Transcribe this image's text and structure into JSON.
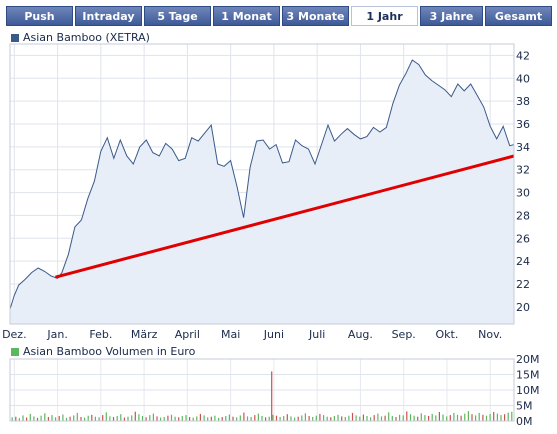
{
  "tabs": [
    {
      "label": "Push",
      "active": false
    },
    {
      "label": "Intraday",
      "active": false
    },
    {
      "label": "5 Tage",
      "active": false
    },
    {
      "label": "1 Monat",
      "active": false
    },
    {
      "label": "3 Monate",
      "active": false
    },
    {
      "label": "1 Jahr",
      "active": true
    },
    {
      "label": "3 Jahre",
      "active": false
    },
    {
      "label": "Gesamt",
      "active": false
    }
  ],
  "colors": {
    "price_line": "#3b5a8a",
    "price_fill": "#e8eef8",
    "trend_line": "#e00000",
    "volume_up": "#5cb85c",
    "volume_down": "#d05050",
    "legend_price": "#3b5a8a",
    "legend_volume": "#5cb85c"
  },
  "chart_data": [
    {
      "type": "line",
      "legend": "Asian Bamboo (XETRA)",
      "categories": [
        "Dez.",
        "Jan.",
        "Feb.",
        "März",
        "April",
        "Mai",
        "Juni",
        "Juli",
        "Aug.",
        "Sep.",
        "Okt.",
        "Nov."
      ],
      "y_ticks": [
        20,
        22,
        24,
        26,
        28,
        30,
        32,
        34,
        36,
        38,
        40,
        42
      ],
      "ylim": [
        18.5,
        43
      ],
      "grid": true,
      "x_range_months": [
        -0.1,
        11.55
      ],
      "series": [
        {
          "x": [
            -0.1,
            0.0,
            0.1,
            0.25,
            0.4,
            0.55,
            0.7,
            0.85,
            1.0,
            1.1,
            1.25,
            1.4,
            1.55,
            1.7,
            1.85,
            2.0,
            2.15,
            2.3,
            2.45,
            2.6,
            2.75,
            2.9,
            3.05,
            3.2,
            3.35,
            3.5,
            3.65,
            3.8,
            3.95,
            4.1,
            4.25,
            4.4,
            4.55,
            4.7,
            4.85,
            5.0,
            5.15,
            5.3,
            5.45,
            5.6,
            5.75,
            5.9,
            6.05,
            6.2,
            6.35,
            6.5,
            6.65,
            6.8,
            6.95,
            7.1,
            7.25,
            7.4,
            7.55,
            7.7,
            7.85,
            8.0,
            8.15,
            8.3,
            8.45,
            8.6,
            8.75,
            8.9,
            9.05,
            9.2,
            9.35,
            9.5,
            9.65,
            9.8,
            9.95,
            10.1,
            10.25,
            10.4,
            10.55,
            10.7,
            10.85,
            11.0,
            11.15,
            11.3,
            11.45,
            11.55
          ],
          "y": [
            19.8,
            21.0,
            21.9,
            22.4,
            23.0,
            23.4,
            23.1,
            22.7,
            22.5,
            23.0,
            24.6,
            27.0,
            27.6,
            29.5,
            31.0,
            33.6,
            34.8,
            33.0,
            34.6,
            33.2,
            32.5,
            34.0,
            34.6,
            33.5,
            33.2,
            34.3,
            33.8,
            32.8,
            33.0,
            34.8,
            34.5,
            35.2,
            35.9,
            32.5,
            32.3,
            32.8,
            30.5,
            27.8,
            32.2,
            34.5,
            34.6,
            33.8,
            34.2,
            32.6,
            32.7,
            34.6,
            34.1,
            33.8,
            32.5,
            34.2,
            35.9,
            34.5,
            35.1,
            35.6,
            35.1,
            34.7,
            34.9,
            35.7,
            35.3,
            35.7,
            37.8,
            39.4,
            40.4,
            41.6,
            41.2,
            40.3,
            39.8,
            39.4,
            39.0,
            38.4,
            39.5,
            38.9,
            39.5,
            38.5,
            37.5,
            35.8,
            34.7,
            35.8,
            34.1,
            34.2
          ]
        }
      ],
      "trend_line": {
        "x": [
          0.95,
          11.55
        ],
        "y": [
          22.6,
          33.2
        ]
      }
    },
    {
      "type": "bar",
      "legend": "Asian Bamboo Volumen in Euro",
      "y_tick_labels": [
        "0M",
        "5M",
        "10M",
        "15M",
        "20M"
      ],
      "y_tick_values": [
        0,
        5,
        10,
        15,
        20
      ],
      "ylim": [
        0,
        20
      ],
      "unit": "M",
      "approx_baseline_volume": 1.5,
      "spike": {
        "x": 5.95,
        "value": 16.0
      },
      "volumes": [
        1.2,
        1.4,
        0.9,
        1.8,
        1.1,
        2.3,
        1.5,
        1.0,
        1.7,
        2.5,
        1.3,
        1.9,
        1.2,
        1.6,
        2.1,
        1.0,
        1.4,
        1.8,
        2.6,
        1.3,
        1.1,
        1.7,
        2.0,
        1.4,
        1.2,
        1.9,
        2.8,
        1.5,
        1.3,
        1.6,
        2.2,
        1.1,
        1.4,
        1.8,
        3.0,
        2.2,
        1.6,
        1.2,
        1.9,
        2.4,
        1.5,
        1.1,
        1.3,
        1.7,
        2.0,
        1.4,
        1.2,
        1.6,
        1.9,
        1.3,
        1.1,
        1.5,
        2.3,
        1.8,
        1.2,
        1.4,
        1.7,
        1.0,
        1.3,
        1.6,
        2.1,
        1.4,
        1.2,
        1.8,
        2.7,
        1.5,
        1.3,
        1.9,
        2.4,
        1.6,
        1.2,
        1.4,
        2.0,
        1.7,
        1.3,
        1.6,
        2.2,
        1.5,
        1.1,
        1.4,
        1.8,
        2.5,
        1.6,
        1.3,
        1.7,
        2.3,
        1.9,
        1.4,
        1.2,
        1.6,
        2.0,
        1.5,
        1.3,
        1.7,
        2.6,
        1.8,
        1.4,
        2.1,
        1.6,
        1.2,
        1.9,
        2.4,
        1.5,
        1.7,
        2.8,
        1.6,
        1.3,
        2.0,
        1.8,
        3.1,
        2.2,
        1.7,
        1.4,
        2.5,
        1.9,
        1.6,
        2.3,
        1.8,
        2.9,
        2.1,
        1.5,
        1.9,
        2.6,
        2.0,
        1.7,
        2.4,
        3.2,
        2.2,
        1.8,
        2.6,
        2.0,
        1.7,
        2.3,
        2.9,
        2.4,
        1.9,
        2.2,
        2.7,
        3.0
      ]
    }
  ]
}
